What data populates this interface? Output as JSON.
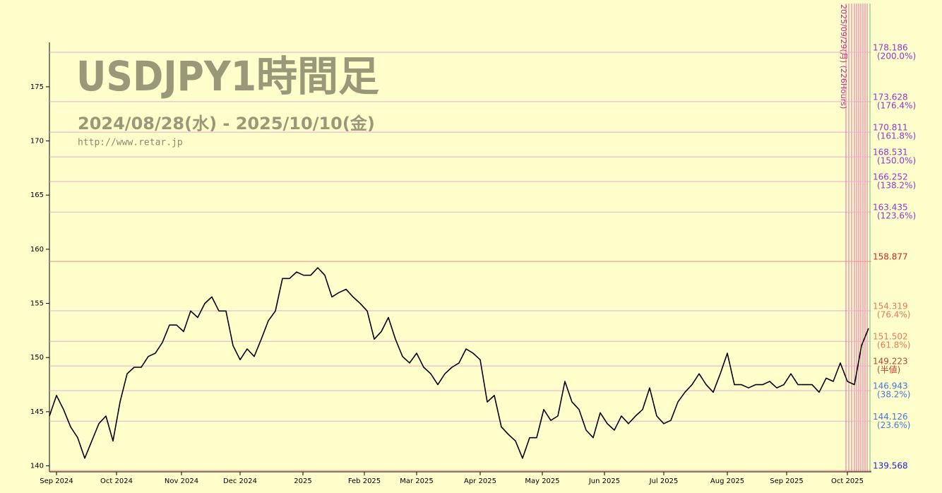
{
  "chart_data": {
    "type": "line",
    "title": "USDJPY1時間足",
    "subtitle": "2024/08/28(水) - 2025/10/10(金)",
    "source": "http://www.retar.jp",
    "series": [
      {
        "name": "USDJPY",
        "color": "#000000",
        "values": [
          144.6,
          146.5,
          145.2,
          143.6,
          142.6,
          140.7,
          142.3,
          143.9,
          144.6,
          142.3,
          145.9,
          148.5,
          149.1,
          149.1,
          150.1,
          150.4,
          151.4,
          153.0,
          153.0,
          152.4,
          154.3,
          153.7,
          155.0,
          155.6,
          154.3,
          154.3,
          151.1,
          149.8,
          150.8,
          150.1,
          151.7,
          153.4,
          154.3,
          157.3,
          157.3,
          157.9,
          157.6,
          157.6,
          158.3,
          157.6,
          155.6,
          156.0,
          156.3,
          155.6,
          155.0,
          154.3,
          151.7,
          152.4,
          153.7,
          151.7,
          150.1,
          149.5,
          150.4,
          149.1,
          148.5,
          147.5,
          148.5,
          149.1,
          149.5,
          150.8,
          150.4,
          149.8,
          145.9,
          146.5,
          143.6,
          142.9,
          142.3,
          140.7,
          142.6,
          142.6,
          145.2,
          144.2,
          144.6,
          147.8,
          145.9,
          145.2,
          143.3,
          142.6,
          144.9,
          143.9,
          143.3,
          144.6,
          143.9,
          144.6,
          145.2,
          147.2,
          144.6,
          143.9,
          144.2,
          145.9,
          146.8,
          147.5,
          148.5,
          147.5,
          146.8,
          148.5,
          150.4,
          147.5,
          147.5,
          147.2,
          147.5,
          147.5,
          147.8,
          147.2,
          147.5,
          148.5,
          147.5,
          147.5,
          147.5,
          146.8,
          148.1,
          147.8,
          149.5,
          147.8,
          147.5,
          151.1,
          152.7
        ]
      }
    ],
    "xlim": [
      0,
      116.4
    ],
    "xticks": [
      {
        "value": 1.0,
        "label": "Sep 2024"
      },
      {
        "value": 9.5,
        "label": "Oct 2024"
      },
      {
        "value": 18.7,
        "label": "Nov 2024"
      },
      {
        "value": 27.0,
        "label": "Dec 2024"
      },
      {
        "value": 35.9,
        "label": "2025"
      },
      {
        "value": 44.6,
        "label": "Feb 2025"
      },
      {
        "value": 52.0,
        "label": "Mar 2025"
      },
      {
        "value": 61.0,
        "label": "Apr 2025"
      },
      {
        "value": 69.8,
        "label": "May 2025"
      },
      {
        "value": 78.6,
        "label": "Jun 2025"
      },
      {
        "value": 87.0,
        "label": "Jul 2025"
      },
      {
        "value": 96.0,
        "label": "Aug 2025"
      },
      {
        "value": 104.4,
        "label": "Sep 2025"
      },
      {
        "value": 113.0,
        "label": "Oct 2025"
      }
    ],
    "ylim": [
      139.45,
      179.1
    ],
    "yticks": [
      140,
      145,
      150,
      155,
      160,
      165,
      170,
      175
    ],
    "levels": [
      {
        "value": 178.186,
        "ratio": "(200.0%)",
        "color": "#9933cc"
      },
      {
        "value": 173.628,
        "ratio": "(176.4%)",
        "color": "#9933cc"
      },
      {
        "value": 170.811,
        "ratio": "(161.8%)",
        "color": "#9933cc"
      },
      {
        "value": 168.531,
        "ratio": "(150.0%)",
        "color": "#9933cc"
      },
      {
        "value": 166.252,
        "ratio": "(138.2%)",
        "color": "#9933cc"
      },
      {
        "value": 163.435,
        "ratio": "(123.6%)",
        "color": "#9933cc"
      },
      {
        "value": 158.877,
        "color": "#dd2222"
      },
      {
        "value": 154.319,
        "ratio": "(76.4%)",
        "color": "#ee7755"
      },
      {
        "value": 151.502,
        "ratio": "(61.8%)",
        "color": "#ee7755"
      },
      {
        "value": 149.223,
        "ratio": "(半値)",
        "color": "#bb4433"
      },
      {
        "value": 146.943,
        "ratio": "(38.2%)",
        "color": "#4477dd"
      },
      {
        "value": 144.126,
        "ratio": "(23.6%)",
        "color": "#4477dd"
      },
      {
        "value": 139.568,
        "color": "#2222dd"
      }
    ],
    "annotations": [
      {
        "text": "2025/09/29(月) (226Hours)",
        "x": 112.8
      }
    ]
  }
}
